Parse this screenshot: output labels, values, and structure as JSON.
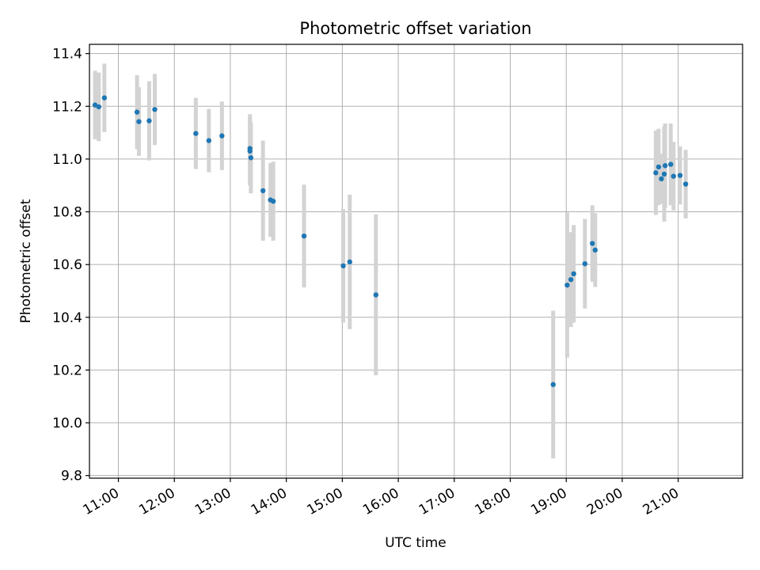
{
  "chart_data": {
    "type": "scatter",
    "title": "Photometric offset variation",
    "xlabel": "UTC time",
    "ylabel": "Photometric offset",
    "x_ticks": [
      "11:00",
      "12:00",
      "13:00",
      "14:00",
      "15:00",
      "16:00",
      "17:00",
      "18:00",
      "19:00",
      "20:00",
      "21:00"
    ],
    "y_ticks": [
      9.8,
      10.0,
      10.2,
      10.4,
      10.6,
      10.8,
      11.0,
      11.2,
      11.4
    ],
    "xlim": [
      "10:29",
      "22:09"
    ],
    "ylim": [
      9.79,
      11.435
    ],
    "grid": true,
    "colors": {
      "point": "#1f77b4",
      "errorbar": "#d3d3d3",
      "grid": "#b0b0b0"
    },
    "points": [
      {
        "x": "10:35",
        "y": 11.205,
        "err": 0.13
      },
      {
        "x": "10:39",
        "y": 11.198,
        "err": 0.13
      },
      {
        "x": "10:45",
        "y": 11.232,
        "err": 0.13
      },
      {
        "x": "11:20",
        "y": 11.178,
        "err": 0.14
      },
      {
        "x": "11:22",
        "y": 11.142,
        "err": 0.13
      },
      {
        "x": "11:33",
        "y": 11.145,
        "err": 0.15
      },
      {
        "x": "11:39",
        "y": 11.188,
        "err": 0.135
      },
      {
        "x": "12:23",
        "y": 11.097,
        "err": 0.135
      },
      {
        "x": "12:37",
        "y": 11.07,
        "err": 0.12
      },
      {
        "x": "12:51",
        "y": 11.088,
        "err": 0.13
      },
      {
        "x": "13:21",
        "y": 11.04,
        "err": 0.13
      },
      {
        "x": "13:21",
        "y": 11.03,
        "err": 0.13
      },
      {
        "x": "13:22",
        "y": 11.005,
        "err": 0.135
      },
      {
        "x": "13:35",
        "y": 10.88,
        "err": 0.19
      },
      {
        "x": "13:43",
        "y": 10.845,
        "err": 0.14
      },
      {
        "x": "13:46",
        "y": 10.84,
        "err": 0.15
      },
      {
        "x": "14:19",
        "y": 10.708,
        "err": 0.195
      },
      {
        "x": "15:01",
        "y": 10.595,
        "err": 0.215
      },
      {
        "x": "15:08",
        "y": 10.61,
        "err": 0.255
      },
      {
        "x": "15:36",
        "y": 10.485,
        "err": 0.305
      },
      {
        "x": "18:46",
        "y": 10.145,
        "err": 0.28
      },
      {
        "x": "19:01",
        "y": 10.522,
        "err": 0.275
      },
      {
        "x": "19:05",
        "y": 10.543,
        "err": 0.18
      },
      {
        "x": "19:08",
        "y": 10.565,
        "err": 0.185
      },
      {
        "x": "19:20",
        "y": 10.603,
        "err": 0.17
      },
      {
        "x": "19:28",
        "y": 10.68,
        "err": 0.145
      },
      {
        "x": "19:31",
        "y": 10.655,
        "err": 0.14
      },
      {
        "x": "20:36",
        "y": 10.948,
        "err": 0.16
      },
      {
        "x": "20:39",
        "y": 10.97,
        "err": 0.145
      },
      {
        "x": "20:42",
        "y": 10.925,
        "err": 0.095
      },
      {
        "x": "20:45",
        "y": 10.943,
        "err": 0.18
      },
      {
        "x": "20:46",
        "y": 10.975,
        "err": 0.16
      },
      {
        "x": "20:52",
        "y": 10.98,
        "err": 0.155
      },
      {
        "x": "20:55",
        "y": 10.935,
        "err": 0.13
      },
      {
        "x": "21:02",
        "y": 10.938,
        "err": 0.11
      },
      {
        "x": "21:08",
        "y": 10.905,
        "err": 0.13
      }
    ]
  }
}
